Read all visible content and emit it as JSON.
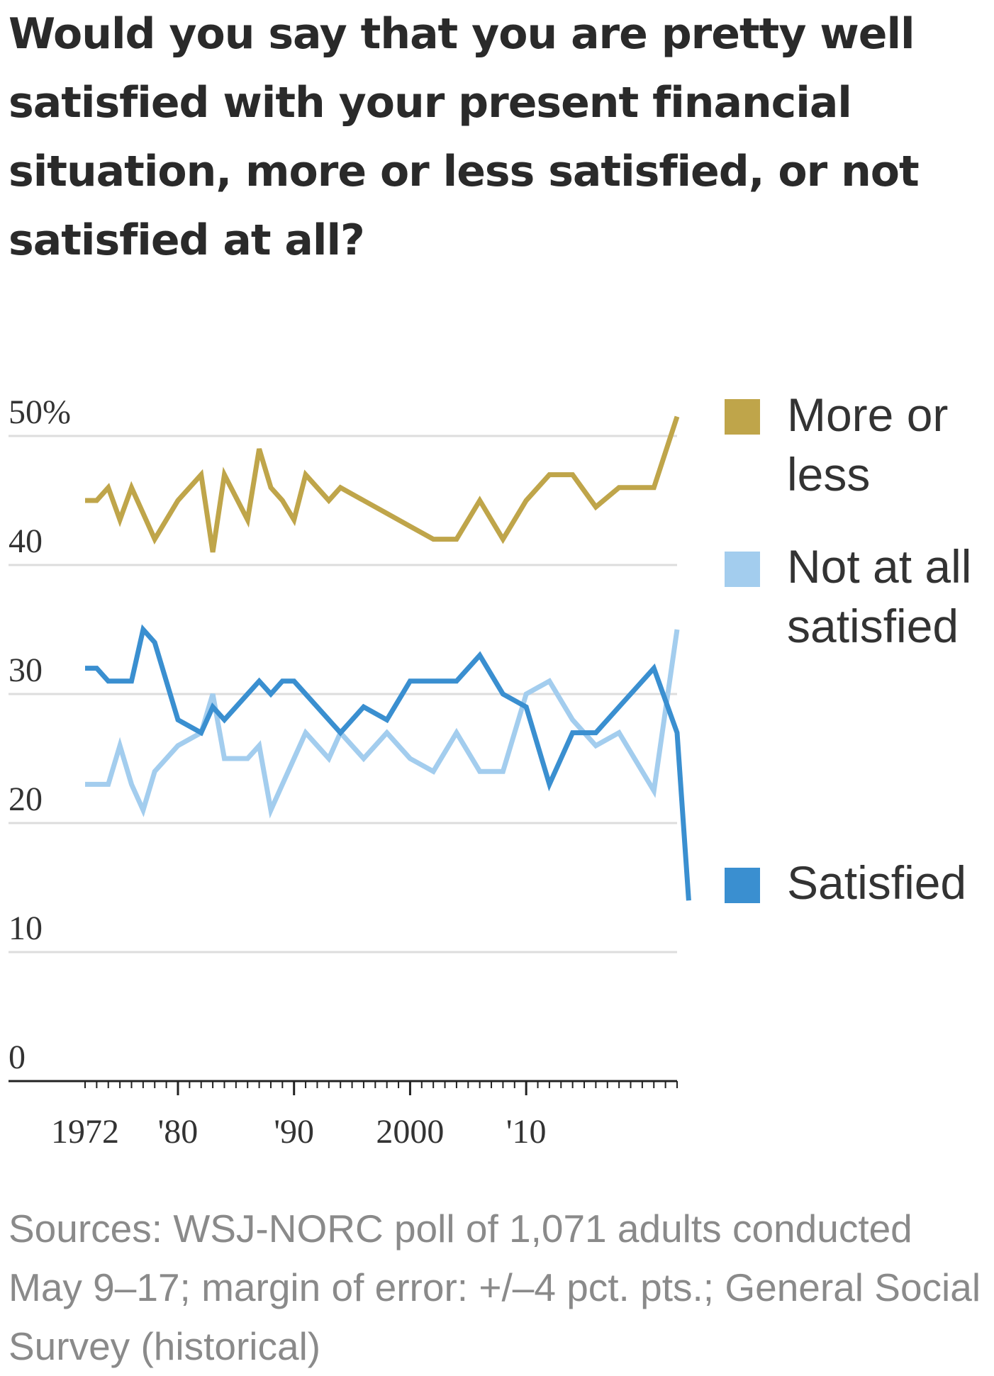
{
  "chart_data": {
    "type": "line",
    "title": "Would you say that you are pretty well satisfied with your present financial situation, more or less satisfied, or not satisfied at all?",
    "source": "Sources: WSJ-NORC poll of 1,071 adults conducted May 9–17; margin of error: +/–4 pct. pts.; General Social Survey (historical)",
    "ylim": [
      0,
      50
    ],
    "yticks": [
      {
        "value": 50,
        "label": "50%"
      },
      {
        "value": 40,
        "label": "40"
      },
      {
        "value": 30,
        "label": "30"
      },
      {
        "value": 20,
        "label": "20"
      },
      {
        "value": 10,
        "label": "10"
      },
      {
        "value": 0,
        "label": "0"
      }
    ],
    "xlim": [
      1972,
      2023
    ],
    "xticks": [
      {
        "value": 1972,
        "label": "1972"
      },
      {
        "value": 1980,
        "label": "'80"
      },
      {
        "value": 1990,
        "label": "'90"
      },
      {
        "value": 2000,
        "label": "2000"
      },
      {
        "value": 2010,
        "label": "'10"
      }
    ],
    "grid": true,
    "legend_position": "right",
    "series": [
      {
        "name": "More or less",
        "color": "#bfa54a",
        "points": [
          [
            1972,
            45
          ],
          [
            1973,
            45
          ],
          [
            1974,
            46
          ],
          [
            1975,
            43.5
          ],
          [
            1976,
            46
          ],
          [
            1977,
            44
          ],
          [
            1978,
            42
          ],
          [
            1980,
            45
          ],
          [
            1982,
            47
          ],
          [
            1983,
            41
          ],
          [
            1984,
            47
          ],
          [
            1986,
            43.5
          ],
          [
            1987,
            49
          ],
          [
            1988,
            46
          ],
          [
            1989,
            45
          ],
          [
            1990,
            43.5
          ],
          [
            1991,
            47
          ],
          [
            1993,
            45
          ],
          [
            1994,
            46
          ],
          [
            1996,
            45
          ],
          [
            1998,
            44
          ],
          [
            2000,
            43
          ],
          [
            2002,
            42
          ],
          [
            2004,
            42
          ],
          [
            2006,
            45
          ],
          [
            2008,
            42
          ],
          [
            2010,
            45
          ],
          [
            2012,
            47
          ],
          [
            2014,
            47
          ],
          [
            2016,
            44.5
          ],
          [
            2018,
            46
          ],
          [
            2021,
            46
          ],
          [
            2023,
            51.5
          ]
        ]
      },
      {
        "name": "Not at all satisfied",
        "color": "#a3cdee",
        "points": [
          [
            1972,
            23
          ],
          [
            1973,
            23
          ],
          [
            1974,
            23
          ],
          [
            1975,
            26
          ],
          [
            1976,
            23
          ],
          [
            1977,
            21
          ],
          [
            1978,
            24
          ],
          [
            1980,
            26
          ],
          [
            1982,
            27
          ],
          [
            1983,
            30
          ],
          [
            1984,
            25
          ],
          [
            1986,
            25
          ],
          [
            1987,
            26
          ],
          [
            1988,
            21
          ],
          [
            1989,
            23
          ],
          [
            1990,
            25
          ],
          [
            1991,
            27
          ],
          [
            1993,
            25
          ],
          [
            1994,
            27
          ],
          [
            1996,
            25
          ],
          [
            1998,
            27
          ],
          [
            2000,
            25
          ],
          [
            2002,
            24
          ],
          [
            2004,
            27
          ],
          [
            2006,
            24
          ],
          [
            2008,
            24
          ],
          [
            2010,
            30
          ],
          [
            2012,
            31
          ],
          [
            2014,
            28
          ],
          [
            2016,
            26
          ],
          [
            2018,
            27
          ],
          [
            2021,
            22.5
          ],
          [
            2023,
            35
          ]
        ]
      },
      {
        "name": "Satisfied",
        "color": "#3a8fd0",
        "points": [
          [
            1972,
            32
          ],
          [
            1973,
            32
          ],
          [
            1974,
            31
          ],
          [
            1975,
            31
          ],
          [
            1976,
            31
          ],
          [
            1977,
            35
          ],
          [
            1978,
            34
          ],
          [
            1980,
            28
          ],
          [
            1982,
            27
          ],
          [
            1983,
            29
          ],
          [
            1984,
            28
          ],
          [
            1986,
            30
          ],
          [
            1987,
            31
          ],
          [
            1988,
            30
          ],
          [
            1989,
            31
          ],
          [
            1990,
            31
          ],
          [
            1991,
            30
          ],
          [
            1993,
            28
          ],
          [
            1994,
            27
          ],
          [
            1996,
            29
          ],
          [
            1998,
            28
          ],
          [
            2000,
            31
          ],
          [
            2002,
            31
          ],
          [
            2004,
            31
          ],
          [
            2006,
            33
          ],
          [
            2008,
            30
          ],
          [
            2010,
            29
          ],
          [
            2012,
            23
          ],
          [
            2014,
            27
          ],
          [
            2016,
            27
          ],
          [
            2018,
            29
          ],
          [
            2021,
            32
          ],
          [
            2023,
            27
          ],
          [
            2024,
            14
          ]
        ]
      }
    ]
  }
}
